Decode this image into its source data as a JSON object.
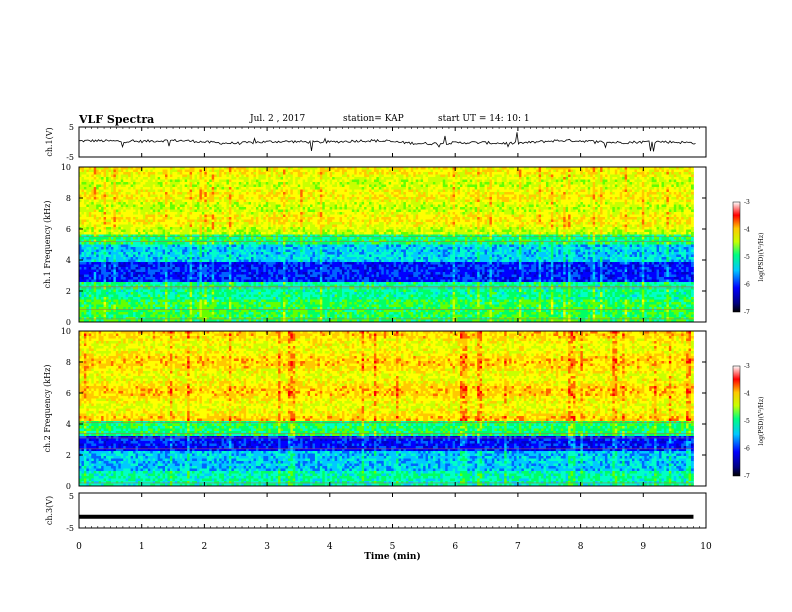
{
  "header": {
    "title": "VLF Spectra",
    "date": "Jul. 2 , 2017",
    "station": "station= KAP",
    "start": "start UT = 14: 10: 1"
  },
  "chart_data": [
    {
      "type": "line",
      "panel": "ch1-waveform",
      "ylabel": "ch.1(V)",
      "ylim": [
        -5,
        5
      ],
      "yticks": [
        "5",
        "-5"
      ],
      "xlim": [
        0,
        10
      ],
      "series_color": "#000000"
    },
    {
      "type": "heatmap",
      "panel": "ch1-spectrogram",
      "ylabel": "ch.1 Frequency (kHz)",
      "ylim": [
        0,
        10
      ],
      "yticks": [
        "0",
        "2",
        "4",
        "6",
        "8",
        "10"
      ],
      "xlim": [
        0,
        9.8
      ],
      "colorbar": {
        "label": "log(PSD)(V²/Hz)",
        "range": [
          -7,
          -3
        ],
        "ticks": [
          "-3",
          "-4",
          "-5",
          "-6",
          "-7"
        ]
      }
    },
    {
      "type": "heatmap",
      "panel": "ch2-spectrogram",
      "ylabel": "ch.2 Frequency (kHz)",
      "ylim": [
        0,
        10
      ],
      "yticks": [
        "0",
        "2",
        "4",
        "6",
        "8",
        "10"
      ],
      "xlim": [
        0,
        9.8
      ],
      "colorbar": {
        "label": "log(PSD)(V²/Hz)",
        "range": [
          -7,
          -3
        ],
        "ticks": [
          "-3",
          "-4",
          "-5",
          "-6",
          "-7"
        ]
      }
    },
    {
      "type": "line",
      "panel": "ch3-waveform",
      "ylabel": "ch.3(V)",
      "ylim": [
        -5,
        5
      ],
      "yticks": [
        "5",
        "-5"
      ],
      "x": [
        0,
        9.8
      ],
      "y": [
        -1.8,
        -1.8
      ],
      "series_color": "#000000"
    }
  ],
  "xaxis": {
    "label": "Time (min)",
    "ticks": [
      "0",
      "1",
      "2",
      "3",
      "4",
      "5",
      "6",
      "7",
      "8",
      "9",
      "10"
    ]
  }
}
